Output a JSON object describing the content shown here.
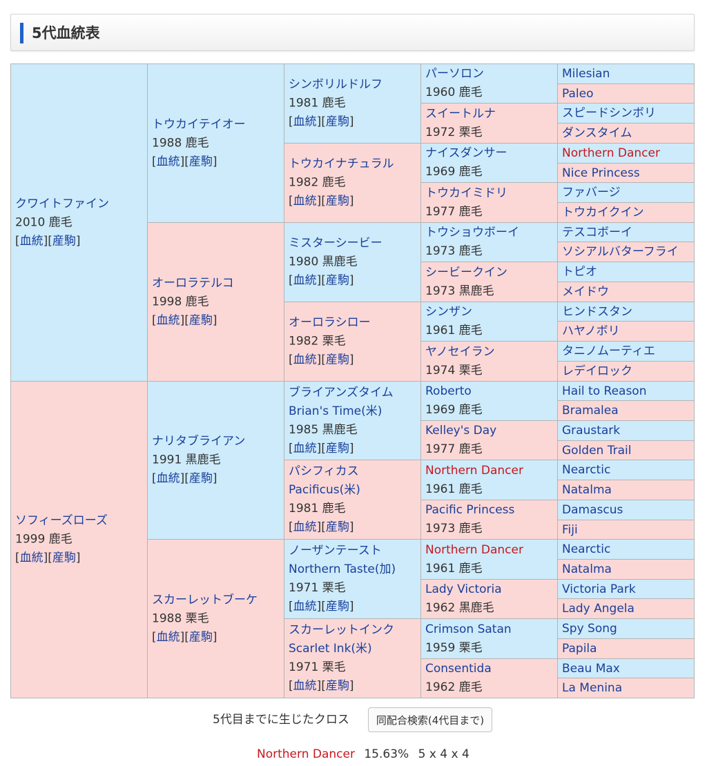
{
  "header": {
    "title": "5代血統表"
  },
  "links": {
    "pedigree": "血統",
    "progeny": "産駒"
  },
  "gen1": [
    {
      "name": "クワイトファイン",
      "info": "2010 鹿毛",
      "sex": "m",
      "red": false
    },
    {
      "name": "ソフィーズローズ",
      "info": "1999 鹿毛",
      "sex": "f",
      "red": false
    }
  ],
  "gen2": [
    {
      "name": "トウカイテイオー",
      "info": "1988 鹿毛",
      "sex": "m",
      "red": false
    },
    {
      "name": "オーロラテルコ",
      "info": "1998 鹿毛",
      "sex": "f",
      "red": false
    },
    {
      "name": "ナリタブライアン",
      "info": "1991 黒鹿毛",
      "sex": "m",
      "red": false
    },
    {
      "name": "スカーレットブーケ",
      "info": "1988 栗毛",
      "sex": "f",
      "red": false
    }
  ],
  "gen3": [
    {
      "name": "シンボリルドルフ",
      "info": "1981 鹿毛",
      "sex": "m",
      "red": false
    },
    {
      "name": "トウカイナチュラル",
      "info": "1982 鹿毛",
      "sex": "f",
      "red": false
    },
    {
      "name": "ミスターシービー",
      "info": "1980 黒鹿毛",
      "sex": "m",
      "red": false
    },
    {
      "name": "オーロラシロー",
      "info": "1982 栗毛",
      "sex": "f",
      "red": false
    },
    {
      "name": "ブライアンズタイム",
      "alt": "Brian's Time(米)",
      "info": "1985 黒鹿毛",
      "sex": "m",
      "red": false
    },
    {
      "name": "パシフィカス",
      "alt": "Pacificus(米)",
      "info": "1981 鹿毛",
      "sex": "f",
      "red": false
    },
    {
      "name": "ノーザンテースト",
      "alt": "Northern Taste(加)",
      "info": "1971 栗毛",
      "sex": "m",
      "red": false
    },
    {
      "name": "スカーレットインク",
      "alt": "Scarlet Ink(米)",
      "info": "1971 栗毛",
      "sex": "f",
      "red": false
    }
  ],
  "gen4": [
    {
      "name": "パーソロン",
      "info": "1960 鹿毛",
      "sex": "m",
      "red": false
    },
    {
      "name": "スイートルナ",
      "info": "1972 栗毛",
      "sex": "f",
      "red": false
    },
    {
      "name": "ナイスダンサー",
      "info": "1969 鹿毛",
      "sex": "m",
      "red": false
    },
    {
      "name": "トウカイミドリ",
      "info": "1977 鹿毛",
      "sex": "f",
      "red": false
    },
    {
      "name": "トウショウボーイ",
      "info": "1973 鹿毛",
      "sex": "m",
      "red": false
    },
    {
      "name": "シービークイン",
      "info": "1973 黒鹿毛",
      "sex": "f",
      "red": false
    },
    {
      "name": "シンザン",
      "info": "1961 鹿毛",
      "sex": "m",
      "red": false
    },
    {
      "name": "ヤノセイラン",
      "info": "1974 栗毛",
      "sex": "f",
      "red": false
    },
    {
      "name": "Roberto",
      "info": "1969 鹿毛",
      "sex": "m",
      "red": false
    },
    {
      "name": "Kelley's Day",
      "info": "1977 鹿毛",
      "sex": "f",
      "red": false
    },
    {
      "name": "Northern Dancer",
      "info": "1961 鹿毛",
      "sex": "m",
      "red": true
    },
    {
      "name": "Pacific Princess",
      "info": "1973 鹿毛",
      "sex": "f",
      "red": false
    },
    {
      "name": "Northern Dancer",
      "info": "1961 鹿毛",
      "sex": "m",
      "red": true
    },
    {
      "name": "Lady Victoria",
      "info": "1962 黒鹿毛",
      "sex": "f",
      "red": false
    },
    {
      "name": "Crimson Satan",
      "info": "1959 栗毛",
      "sex": "m",
      "red": false
    },
    {
      "name": "Consentida",
      "info": "1962 鹿毛",
      "sex": "f",
      "red": false
    }
  ],
  "gen5": [
    {
      "name": "Milesian",
      "sex": "m",
      "red": false
    },
    {
      "name": "Paleo",
      "sex": "f",
      "red": false
    },
    {
      "name": "スピードシンボリ",
      "sex": "m",
      "red": false
    },
    {
      "name": "ダンスタイム",
      "sex": "f",
      "red": false
    },
    {
      "name": "Northern Dancer",
      "sex": "m",
      "red": true
    },
    {
      "name": "Nice Princess",
      "sex": "f",
      "red": false
    },
    {
      "name": "ファバージ",
      "sex": "m",
      "red": false
    },
    {
      "name": "トウカイクイン",
      "sex": "f",
      "red": false
    },
    {
      "name": "テスコボーイ",
      "sex": "m",
      "red": false
    },
    {
      "name": "ソシアルバターフライ",
      "sex": "f",
      "red": false
    },
    {
      "name": "トピオ",
      "sex": "m",
      "red": false
    },
    {
      "name": "メイドウ",
      "sex": "f",
      "red": false
    },
    {
      "name": "ヒンドスタン",
      "sex": "m",
      "red": false
    },
    {
      "name": "ハヤノボリ",
      "sex": "f",
      "red": false
    },
    {
      "name": "タニノムーティエ",
      "sex": "m",
      "red": false
    },
    {
      "name": "レデイロック",
      "sex": "f",
      "red": false
    },
    {
      "name": "Hail to Reason",
      "sex": "m",
      "red": false
    },
    {
      "name": "Bramalea",
      "sex": "f",
      "red": false
    },
    {
      "name": "Graustark",
      "sex": "m",
      "red": false
    },
    {
      "name": "Golden Trail",
      "sex": "f",
      "red": false
    },
    {
      "name": "Nearctic",
      "sex": "m",
      "red": false
    },
    {
      "name": "Natalma",
      "sex": "f",
      "red": false
    },
    {
      "name": "Damascus",
      "sex": "m",
      "red": false
    },
    {
      "name": "Fiji",
      "sex": "f",
      "red": false
    },
    {
      "name": "Nearctic",
      "sex": "m",
      "red": false
    },
    {
      "name": "Natalma",
      "sex": "f",
      "red": false
    },
    {
      "name": "Victoria Park",
      "sex": "m",
      "red": false
    },
    {
      "name": "Lady Angela",
      "sex": "f",
      "red": false
    },
    {
      "name": "Spy Song",
      "sex": "m",
      "red": false
    },
    {
      "name": "Papila",
      "sex": "f",
      "red": false
    },
    {
      "name": "Beau Max",
      "sex": "m",
      "red": false
    },
    {
      "name": "La Menina",
      "sex": "f",
      "red": false
    }
  ],
  "cross": {
    "label": "5代目までに生じたクロス",
    "button": "同配合検索(4代目まで)",
    "items": [
      {
        "name": "Northern Dancer",
        "percent": "15.63%",
        "gens": "5 x 4 x 4"
      }
    ]
  },
  "colors": {
    "male_bg": "#cdebfa",
    "female_bg": "#fbd8d6",
    "link": "#1a3f9b",
    "cross_red": "#c8161d",
    "accent": "#1e62c9"
  }
}
